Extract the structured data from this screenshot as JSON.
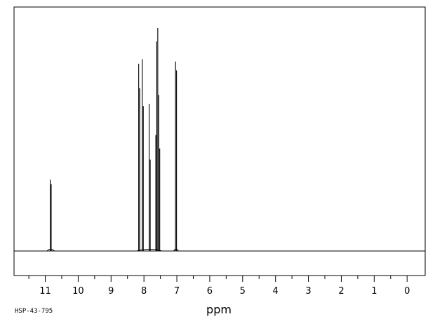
{
  "chart_data": {
    "type": "line",
    "title": "",
    "xlabel": "ppm",
    "ylabel": "",
    "x_reversed": true,
    "xlim": [
      11.95,
      -0.55
    ],
    "ylim": [
      0,
      1.0
    ],
    "major_ticks": [
      11,
      10,
      9,
      8,
      7,
      6,
      5,
      4,
      3,
      2,
      1,
      0
    ],
    "minor_ticks": [
      11.5,
      10.5,
      9.5,
      8.5,
      7.5,
      6.5,
      5.5,
      4.5,
      3.5,
      2.5,
      1.5,
      0.5
    ],
    "tick_labels": [
      "11",
      "10",
      "9",
      "8",
      "7",
      "6",
      "5",
      "4",
      "3",
      "2",
      "1",
      "0"
    ],
    "grid": false,
    "legend": "none",
    "line_color": "#000000",
    "peaks": [
      {
        "ppm": 10.85,
        "height": 0.32
      },
      {
        "ppm": 10.82,
        "height": 0.3
      },
      {
        "ppm": 8.16,
        "height": 0.84
      },
      {
        "ppm": 8.13,
        "height": 0.73
      },
      {
        "ppm": 8.05,
        "height": 0.86
      },
      {
        "ppm": 8.02,
        "height": 0.65
      },
      {
        "ppm": 7.84,
        "height": 0.66
      },
      {
        "ppm": 7.81,
        "height": 0.41
      },
      {
        "ppm": 7.64,
        "height": 0.52
      },
      {
        "ppm": 7.61,
        "height": 0.94
      },
      {
        "ppm": 7.58,
        "height": 1.0
      },
      {
        "ppm": 7.55,
        "height": 0.7
      },
      {
        "ppm": 7.52,
        "height": 0.46
      },
      {
        "ppm": 7.04,
        "height": 0.85
      },
      {
        "ppm": 7.01,
        "height": 0.81
      }
    ]
  },
  "footer": {
    "code": "HSP-43-795"
  }
}
